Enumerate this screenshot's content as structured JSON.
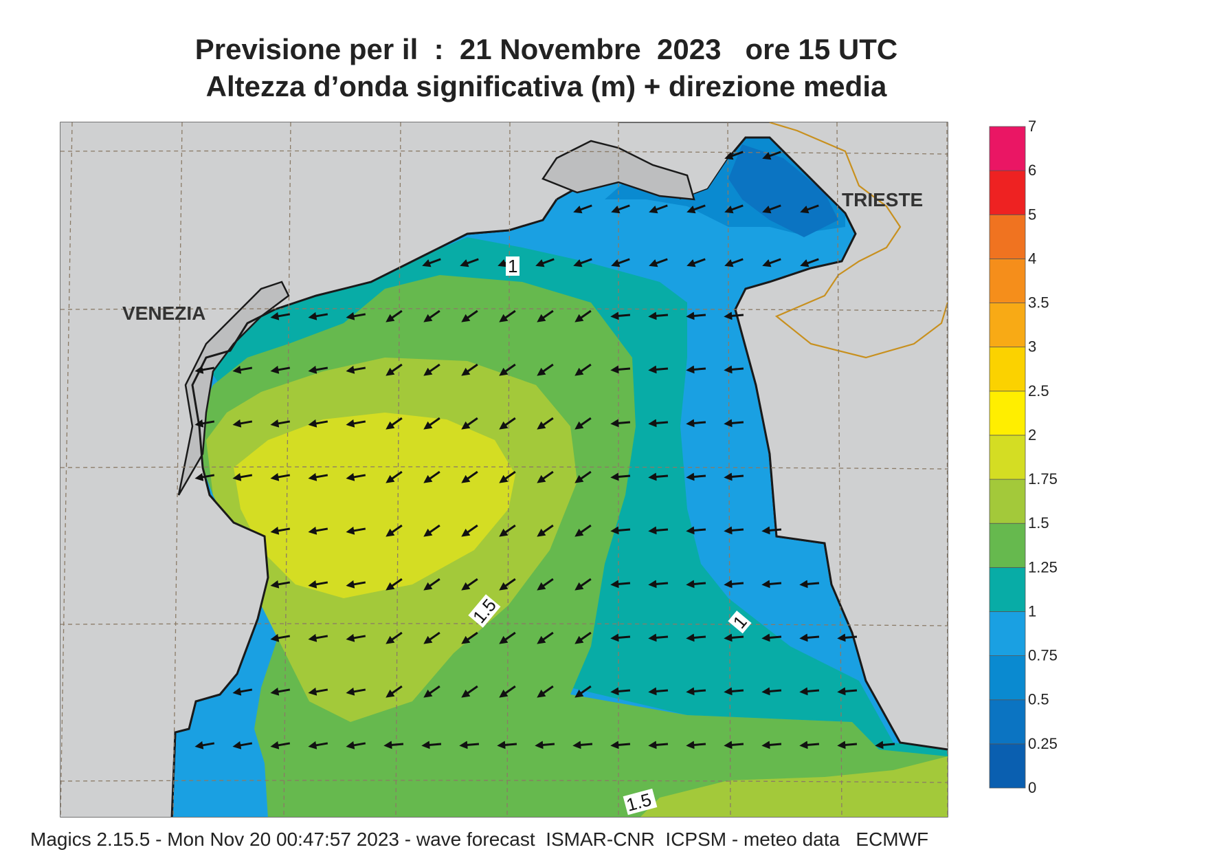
{
  "title": {
    "line1": "Previsione per il  :  21 Novembre  2023   ore 15 UTC",
    "line2": "Altezza d’onda significativa (m) + direzione media"
  },
  "footer": "Magics 2.15.5 - Mon Nov 20 00:47:57 2023 - wave forecast  ISMAR-CNR  ICPSM - meteo data   ECMWF",
  "cities": [
    {
      "name": "VENEZIA"
    },
    {
      "name": "TRIESTE"
    }
  ],
  "contour_labels": [
    "1",
    "1.5",
    "1",
    "1.5"
  ],
  "colorbar": {
    "unit": "m",
    "levels": [
      "0",
      "0.25",
      "0.5",
      "0.75",
      "1",
      "1.25",
      "1.5",
      "1.75",
      "2",
      "2.5",
      "3",
      "3.5",
      "4",
      "5",
      "6",
      "7"
    ],
    "colors": [
      "#0a5fb0",
      "#0b74c2",
      "#0a8ad0",
      "#1aa0e2",
      "#08aca6",
      "#66b94e",
      "#a3c93a",
      "#d4dd23",
      "#ffee00",
      "#fbd200",
      "#f8aa15",
      "#f58e1b",
      "#f07320",
      "#ee2222",
      "#ea1664"
    ]
  },
  "colors": {
    "land": "#cfd0d1",
    "coast": "#1a1a1a",
    "border": "#c8901e",
    "grid": "#8a7a66"
  },
  "field": {
    "variable": "Altezza d’onda significativa (m)",
    "max_approx_m": 1.9,
    "min_approx_m": 0.3,
    "mean_direction": "waves travelling toward the west / south-west"
  }
}
